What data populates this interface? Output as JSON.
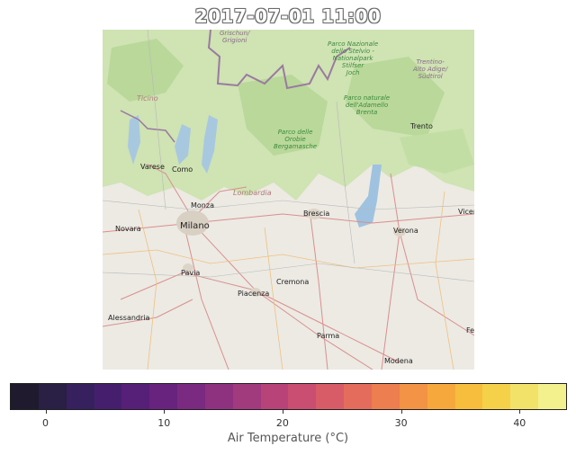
{
  "title": "2017-07-01 11:00",
  "map": {
    "labels": {
      "grischun": "Grischun/\nGrigioni",
      "stelvio": "Parco Nazionale\ndello Stelvio -\nNationalpark\nStilfser\nJoch",
      "trentino": "Trentino-\nAlto Adige/\nSüdtirol",
      "ticino": "Ticino",
      "adamello": "Parco naturale\ndell'Adamello\nBrenta",
      "orobie": "Parco delle\nOrobie\nBergamasche",
      "trento": "Trento",
      "varese": "Varese",
      "como": "Como",
      "lombardia": "Lombardia",
      "monza": "Monza",
      "brescia": "Brescia",
      "vicenza": "Vicen",
      "novara": "Novara",
      "milano": "Milano",
      "verona": "Verona",
      "pavia": "Pavia",
      "cremona": "Cremona",
      "piacenza": "Piacenza",
      "alessandria": "Alessandria",
      "parma": "Parma",
      "modena": "Modena",
      "ferrara": "Fe"
    }
  },
  "colorbar": {
    "label": "Air Temperature (°C)",
    "ticks": [
      "0",
      "10",
      "20",
      "30",
      "40"
    ],
    "tick_values": [
      0,
      10,
      20,
      30,
      40
    ],
    "range": [
      -3,
      44
    ],
    "colors": [
      "#1f1a2e",
      "#2a1f45",
      "#36205e",
      "#451f6e",
      "#561f78",
      "#67237d",
      "#7a2a80",
      "#8e3280",
      "#a23a7e",
      "#b74379",
      "#c94e71",
      "#d85c67",
      "#e46c5c",
      "#ec7e50",
      "#f29345",
      "#f6a83d",
      "#f7bd3c",
      "#f5d14a",
      "#f2e26a",
      "#f3f08e"
    ]
  }
}
